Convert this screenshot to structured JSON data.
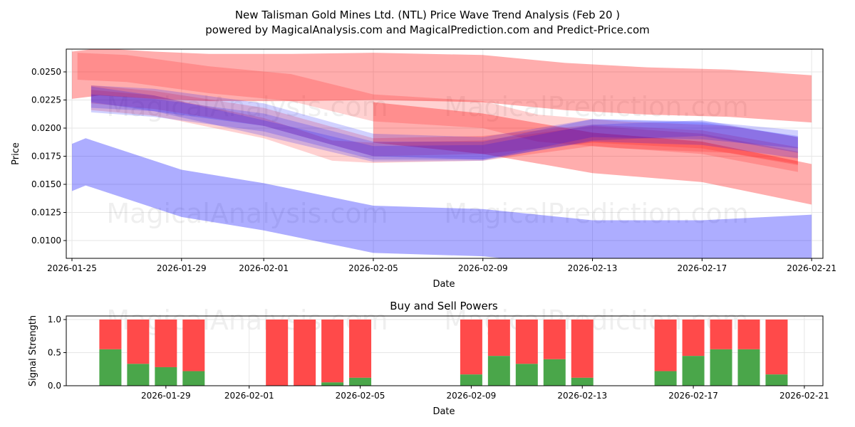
{
  "title_line1": "New Talisman Gold Mines Ltd. (NTL) Price Wave Trend Analysis (Feb 20 )",
  "title_line2": "powered by MagicalAnalysis.com and MagicalPrediction.com and Predict-Price.com",
  "watermarks": [
    "MagicalAnalysis.com",
    "MagicalPrediction.com"
  ],
  "colors": {
    "red_band": "#ff0000",
    "blue_band": "#0000ff",
    "buy": "#4aa64a",
    "sell": "#ff4a4a"
  },
  "chart_data": [
    {
      "type": "area",
      "title": "",
      "xlabel": "Date",
      "ylabel": "Price",
      "ylim": [
        0.0084,
        0.027
      ],
      "x_start": "2026-01-25",
      "xlim_days": [
        -0.2,
        27.4
      ],
      "xticks": [
        {
          "label": "2026-01-25",
          "day": 0
        },
        {
          "label": "2026-01-29",
          "day": 4
        },
        {
          "label": "2026-02-01",
          "day": 7
        },
        {
          "label": "2026-02-05",
          "day": 11
        },
        {
          "label": "2026-02-09",
          "day": 15
        },
        {
          "label": "2026-02-13",
          "day": 19
        },
        {
          "label": "2026-02-17",
          "day": 23
        },
        {
          "label": "2026-02-21",
          "day": 27
        }
      ],
      "yticks": [
        "0.0100",
        "0.0125",
        "0.0150",
        "0.0175",
        "0.0200",
        "0.0225",
        "0.0250"
      ],
      "series": [
        {
          "name": "red-upper",
          "color": "red",
          "halfwidth": 0.0021,
          "days": [
            0,
            1,
            3,
            5,
            8,
            11,
            15,
            18,
            21,
            24,
            27
          ],
          "values": [
            0.0247,
            0.025,
            0.0247,
            0.0245,
            0.0245,
            0.0246,
            0.0244,
            0.0237,
            0.0233,
            0.0231,
            0.0226
          ]
        },
        {
          "name": "red-top-thin",
          "color": "red",
          "halfwidth": 0.0012,
          "days": [
            0.2,
            2,
            5,
            8,
            11,
            15,
            17,
            20,
            24,
            26.5
          ],
          "values": [
            0.0255,
            0.0253,
            0.0243,
            0.0236,
            0.0218,
            0.0212,
            0.02,
            0.0194,
            0.019,
            0.018
          ]
        },
        {
          "name": "red-descending",
          "color": "red",
          "halfwidth": 0.0018,
          "days": [
            11,
            15,
            19,
            23,
            27
          ],
          "values": [
            0.0205,
            0.0195,
            0.0178,
            0.017,
            0.015
          ]
        },
        {
          "name": "red-mid",
          "color": "red",
          "halfwidth": 0.0008,
          "days": [
            0.7,
            3,
            7,
            11,
            15,
            19,
            23,
            26.5
          ],
          "values": [
            0.023,
            0.0225,
            0.021,
            0.0183,
            0.0185,
            0.0195,
            0.019,
            0.0175
          ]
        },
        {
          "name": "red-mid2",
          "color": "red",
          "halfwidth": 0.0009,
          "days": [
            0.7,
            3,
            7,
            9.5,
            11,
            15,
            19,
            23,
            26.5
          ],
          "values": [
            0.0225,
            0.022,
            0.02,
            0.018,
            0.0178,
            0.018,
            0.0193,
            0.0186,
            0.017
          ]
        },
        {
          "name": "blue-mid",
          "color": "blue",
          "halfwidth": 0.001,
          "days": [
            0.7,
            3,
            7,
            11,
            15,
            19,
            23,
            26.5
          ],
          "values": [
            0.0228,
            0.0225,
            0.0212,
            0.0185,
            0.0182,
            0.0198,
            0.0195,
            0.0183
          ]
        },
        {
          "name": "blue-mid2",
          "color": "blue",
          "halfwidth": 0.0008,
          "days": [
            0.7,
            3,
            7,
            11,
            15,
            19,
            23,
            26.5
          ],
          "values": [
            0.0222,
            0.0218,
            0.0205,
            0.018,
            0.018,
            0.02,
            0.0198,
            0.019
          ]
        },
        {
          "name": "blue-mid3",
          "color": "blue",
          "halfwidth": 0.0007,
          "days": [
            0.7,
            3,
            7,
            11,
            15,
            19,
            23,
            26.5
          ],
          "values": [
            0.023,
            0.0222,
            0.02,
            0.0177,
            0.0178,
            0.0196,
            0.02,
            0.0185
          ]
        },
        {
          "name": "blue-lower",
          "color": "blue",
          "halfwidth": 0.0021,
          "days": [
            0,
            0.5,
            4,
            7,
            11,
            15,
            19,
            23,
            27
          ],
          "values": [
            0.0165,
            0.017,
            0.0142,
            0.013,
            0.011,
            0.0107,
            0.0097,
            0.0097,
            0.0102
          ]
        }
      ]
    },
    {
      "type": "bar",
      "title": "Buy and Sell Powers",
      "xlabel": "Date",
      "ylabel": "Signal Strength",
      "ylim": [
        0,
        1.05
      ],
      "yticks": [
        "0.0",
        "0.5",
        "1.0"
      ],
      "xticks": [
        {
          "label": "2026-01-29",
          "day": 4
        },
        {
          "label": "2026-02-01",
          "day": 7
        },
        {
          "label": "2026-02-05",
          "day": 11
        },
        {
          "label": "2026-02-09",
          "day": 15
        },
        {
          "label": "2026-02-13",
          "day": 19
        },
        {
          "label": "2026-02-17",
          "day": 23
        },
        {
          "label": "2026-02-21",
          "day": 27
        }
      ],
      "days": [
        2,
        3,
        4,
        5,
        8,
        9,
        10,
        11,
        15,
        16,
        17,
        18,
        19,
        22,
        23,
        24,
        25,
        26
      ],
      "buy": [
        0.55,
        0.33,
        0.28,
        0.22,
        0.0,
        0.0,
        0.05,
        0.12,
        0.17,
        0.45,
        0.33,
        0.4,
        0.12,
        0.22,
        0.45,
        0.55,
        0.55,
        0.17
      ]
    }
  ]
}
